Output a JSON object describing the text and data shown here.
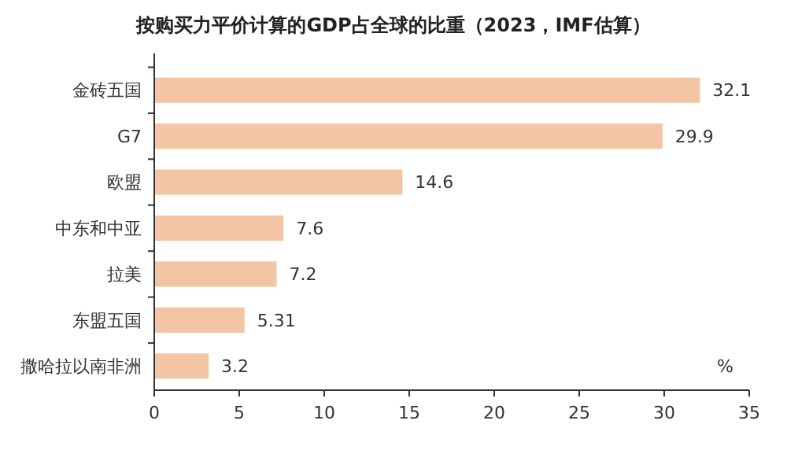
{
  "chart_data": {
    "type": "bar",
    "orientation": "horizontal",
    "title": "按购买力平价计算的GDP占全球的比重（2023，IMF估算）",
    "categories": [
      "金砖五国",
      "G7",
      "欧盟",
      "中东和中亚",
      "拉美",
      "东盟五国",
      "撒哈拉以南非洲"
    ],
    "values": [
      32.1,
      29.9,
      14.6,
      7.6,
      7.2,
      5.31,
      3.2
    ],
    "color": "#f4c5a5",
    "data_labels": true,
    "xlim": [
      0,
      35
    ],
    "xticks": [
      0,
      5,
      10,
      15,
      20,
      25,
      30,
      35
    ],
    "annotations": [
      "%"
    ],
    "grid": false
  }
}
